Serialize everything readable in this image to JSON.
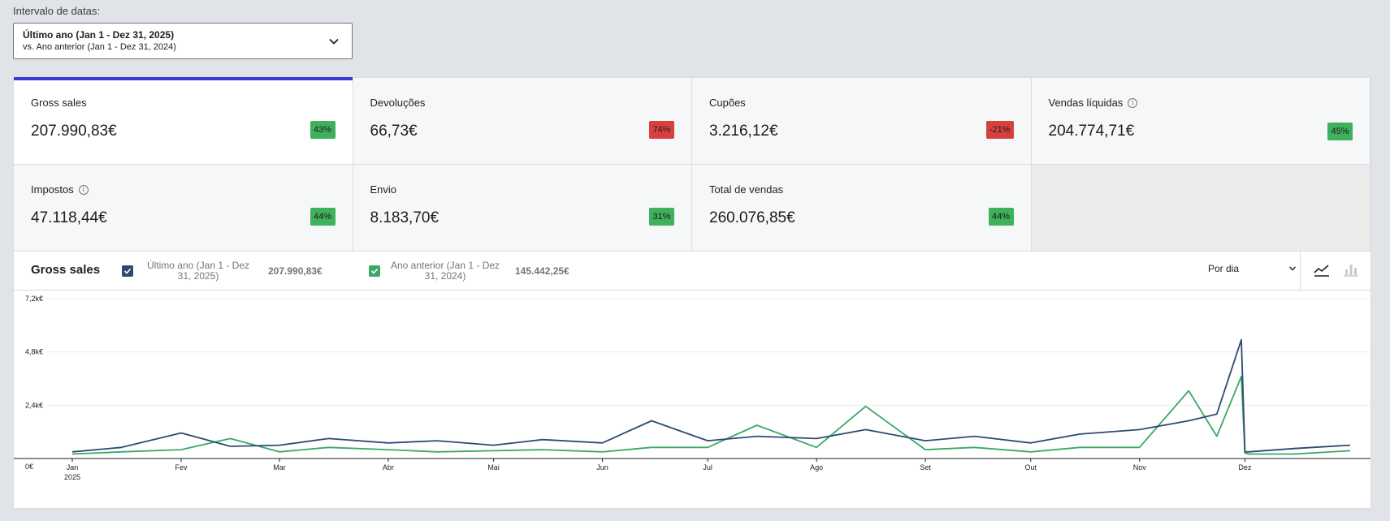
{
  "date_range": {
    "label": "Intervalo de datas:",
    "primary": "Último ano (Jan 1 - Dez 31, 2025)",
    "secondary": "vs. Ano anterior (Jan 1 - Dez 31, 2024)"
  },
  "tiles": [
    {
      "label": "Gross sales",
      "value": "207.990,83€",
      "delta": "43%",
      "trend": "pos",
      "info": false,
      "selected": true
    },
    {
      "label": "Devoluções",
      "value": "66,73€",
      "delta": "74%",
      "trend": "neg",
      "info": false,
      "selected": false
    },
    {
      "label": "Cupões",
      "value": "3.216,12€",
      "delta": "-21%",
      "trend": "neg",
      "info": false,
      "selected": false
    },
    {
      "label": "Vendas líquidas",
      "value": "204.774,71€",
      "delta": "45%",
      "trend": "pos",
      "info": true,
      "selected": false
    },
    {
      "label": "Impostos",
      "value": "47.118,44€",
      "delta": "44%",
      "trend": "pos",
      "info": true,
      "selected": false
    },
    {
      "label": "Envio",
      "value": "8.183,70€",
      "delta": "31%",
      "trend": "pos",
      "info": false,
      "selected": false
    },
    {
      "label": "Total de vendas",
      "value": "260.076,85€",
      "delta": "44%",
      "trend": "pos",
      "info": false,
      "selected": false
    }
  ],
  "chart": {
    "title": "Gross sales",
    "interval_label": "Por dia",
    "chart_type_selected": "line",
    "legend": [
      {
        "name": "Último ano (Jan 1 - Dez 31, 2025)",
        "total": "207.990,83€",
        "color": "#2e4a72"
      },
      {
        "name": "Ano anterior (Jan 1 - Dez 31, 2024)",
        "total": "145.442,25€",
        "color": "#3aa867"
      }
    ]
  },
  "chart_data": {
    "type": "line",
    "x_ticks": [
      "Jan",
      "Fev",
      "Mar",
      "Abr",
      "Mai",
      "Jun",
      "Jul",
      "Ago",
      "Set",
      "Out",
      "Nov",
      "Dez"
    ],
    "x_year_label": "2025",
    "y_ticks": [
      "0€",
      "2,4k€",
      "4,8k€",
      "7,2k€"
    ],
    "ylim": [
      0,
      7200
    ],
    "grid": true,
    "x": [
      "2025-01-01",
      "2025-01-15",
      "2025-02-01",
      "2025-02-15",
      "2025-03-01",
      "2025-03-15",
      "2025-04-01",
      "2025-04-15",
      "2025-05-01",
      "2025-05-15",
      "2025-06-01",
      "2025-06-15",
      "2025-07-01",
      "2025-07-15",
      "2025-08-01",
      "2025-08-15",
      "2025-09-01",
      "2025-09-15",
      "2025-10-01",
      "2025-10-15",
      "2025-11-01",
      "2025-11-15",
      "2025-11-23",
      "2025-11-30",
      "2025-12-01",
      "2025-12-02",
      "2025-12-15",
      "2025-12-31"
    ],
    "series": [
      {
        "name": "Último ano (Jan 1 - Dez 31, 2025)",
        "color": "#2e4a72",
        "values": [
          300,
          500,
          1150,
          550,
          600,
          900,
          700,
          800,
          600,
          850,
          700,
          1700,
          800,
          1000,
          900,
          1300,
          800,
          1000,
          700,
          1100,
          1300,
          1700,
          2000,
          5350,
          300,
          300,
          450,
          600
        ]
      },
      {
        "name": "Ano anterior (Jan 1 - Dez 31, 2024)",
        "color": "#3aa867",
        "values": [
          200,
          300,
          400,
          900,
          300,
          500,
          400,
          300,
          350,
          400,
          300,
          500,
          500,
          1500,
          500,
          2350,
          400,
          500,
          300,
          500,
          500,
          3050,
          1000,
          3700,
          250,
          200,
          200,
          350
        ]
      }
    ]
  }
}
